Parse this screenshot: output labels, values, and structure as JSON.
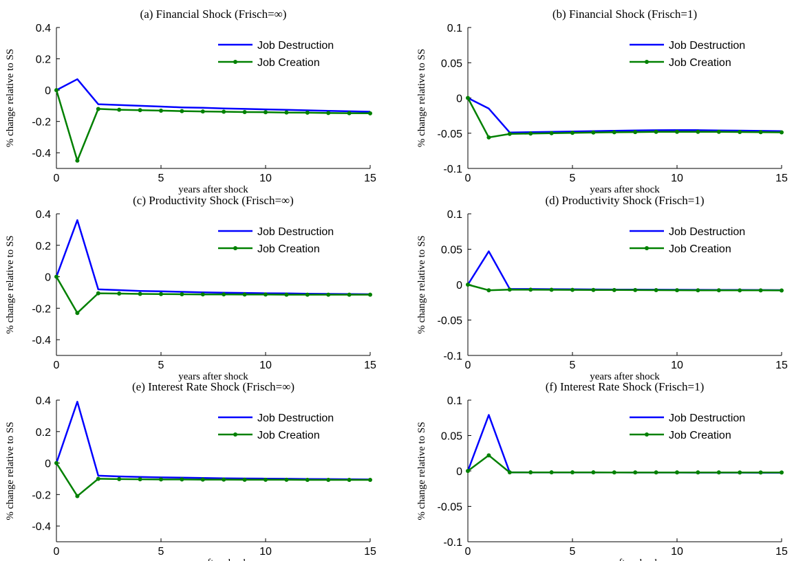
{
  "chart_data": [
    {
      "type": "line",
      "title": "(a) Financial Shock (Frisch=∞)",
      "xlabel": "years after shock",
      "ylabel": "% change relative to SS",
      "xlim": [
        0,
        15
      ],
      "ylim": [
        -0.5,
        0.4
      ],
      "xticks": [
        0,
        5,
        10,
        15
      ],
      "yticks": [
        0.4,
        0.2,
        0,
        -0.2,
        -0.4
      ],
      "yticklabels": [
        "0.4",
        "0.2",
        "0",
        "-0.2",
        "-0.4"
      ],
      "legend": "top-right",
      "x": [
        0,
        1,
        2,
        3,
        4,
        5,
        6,
        7,
        8,
        9,
        10,
        11,
        12,
        13,
        14,
        15
      ],
      "series": [
        {
          "name": "Job Destruction",
          "color": "#0000ff",
          "markers": false,
          "values": [
            0,
            0.07,
            -0.09,
            -0.095,
            -0.1,
            -0.105,
            -0.11,
            -0.113,
            -0.117,
            -0.12,
            -0.123,
            -0.126,
            -0.129,
            -0.132,
            -0.135,
            -0.138
          ]
        },
        {
          "name": "Job Creation",
          "color": "#008000",
          "markers": true,
          "values": [
            0,
            -0.45,
            -0.12,
            -0.125,
            -0.128,
            -0.131,
            -0.134,
            -0.136,
            -0.138,
            -0.14,
            -0.141,
            -0.143,
            -0.144,
            -0.146,
            -0.147,
            -0.148
          ]
        }
      ]
    },
    {
      "type": "line",
      "title": "(b) Financial Shock (Frisch=1)",
      "xlabel": "years after shock",
      "ylabel": "% change relative to SS",
      "xlim": [
        0,
        15
      ],
      "ylim": [
        -0.1,
        0.1
      ],
      "xticks": [
        0,
        5,
        10,
        15
      ],
      "yticks": [
        0.1,
        0.05,
        0,
        -0.05,
        -0.1
      ],
      "yticklabels": [
        "0.1",
        "0.05",
        "0",
        "-0.05",
        "-0.1"
      ],
      "legend": "top-right",
      "x": [
        0,
        1,
        2,
        3,
        4,
        5,
        6,
        7,
        8,
        9,
        10,
        11,
        12,
        13,
        14,
        15
      ],
      "series": [
        {
          "name": "Job Destruction",
          "color": "#0000ff",
          "markers": false,
          "values": [
            0,
            -0.015,
            -0.049,
            -0.0485,
            -0.048,
            -0.0475,
            -0.047,
            -0.0465,
            -0.046,
            -0.0458,
            -0.0457,
            -0.0457,
            -0.046,
            -0.0463,
            -0.0467,
            -0.047
          ]
        },
        {
          "name": "Job Creation",
          "color": "#008000",
          "markers": true,
          "values": [
            0,
            -0.056,
            -0.051,
            -0.0505,
            -0.05,
            -0.0495,
            -0.049,
            -0.0487,
            -0.0484,
            -0.0481,
            -0.048,
            -0.048,
            -0.0481,
            -0.0483,
            -0.0485,
            -0.0488
          ]
        }
      ]
    },
    {
      "type": "line",
      "title": "(c) Productivity Shock (Frisch=∞)",
      "xlabel": "years after shock",
      "ylabel": "% change relative to SS",
      "xlim": [
        0,
        15
      ],
      "ylim": [
        -0.5,
        0.4
      ],
      "xticks": [
        0,
        5,
        10,
        15
      ],
      "yticks": [
        0.4,
        0.2,
        0,
        -0.2,
        -0.4
      ],
      "yticklabels": [
        "0.4",
        "0.2",
        "0",
        "-0.2",
        "-0.4"
      ],
      "legend": "top-right",
      "x": [
        0,
        1,
        2,
        3,
        4,
        5,
        6,
        7,
        8,
        9,
        10,
        11,
        12,
        13,
        14,
        15
      ],
      "series": [
        {
          "name": "Job Destruction",
          "color": "#0000ff",
          "markers": false,
          "values": [
            0,
            0.36,
            -0.08,
            -0.085,
            -0.09,
            -0.093,
            -0.096,
            -0.099,
            -0.101,
            -0.103,
            -0.105,
            -0.106,
            -0.108,
            -0.109,
            -0.11,
            -0.111
          ]
        },
        {
          "name": "Job Creation",
          "color": "#008000",
          "markers": true,
          "values": [
            0,
            -0.23,
            -0.105,
            -0.107,
            -0.109,
            -0.11,
            -0.111,
            -0.112,
            -0.112,
            -0.113,
            -0.113,
            -0.114,
            -0.114,
            -0.114,
            -0.114,
            -0.114
          ]
        }
      ]
    },
    {
      "type": "line",
      "title": "(d) Productivity Shock (Frisch=1)",
      "xlabel": "years after shock",
      "ylabel": "% change relative to SS",
      "xlim": [
        0,
        15
      ],
      "ylim": [
        -0.1,
        0.1
      ],
      "xticks": [
        0,
        5,
        10,
        15
      ],
      "yticks": [
        0.1,
        0.05,
        0,
        -0.05,
        -0.1
      ],
      "yticklabels": [
        "0.1",
        "0.05",
        "0",
        "-0.05",
        "-0.1"
      ],
      "legend": "top-right",
      "x": [
        0,
        1,
        2,
        3,
        4,
        5,
        6,
        7,
        8,
        9,
        10,
        11,
        12,
        13,
        14,
        15
      ],
      "series": [
        {
          "name": "Job Destruction",
          "color": "#0000ff",
          "markers": false,
          "values": [
            0,
            0.047,
            -0.006,
            -0.0062,
            -0.0064,
            -0.0066,
            -0.0068,
            -0.007,
            -0.0071,
            -0.0072,
            -0.0073,
            -0.0074,
            -0.0075,
            -0.0076,
            -0.0077,
            -0.0078
          ]
        },
        {
          "name": "Job Creation",
          "color": "#008000",
          "markers": true,
          "values": [
            0,
            -0.008,
            -0.007,
            -0.0072,
            -0.0073,
            -0.0074,
            -0.0075,
            -0.0076,
            -0.0077,
            -0.0078,
            -0.0079,
            -0.008,
            -0.008,
            -0.0081,
            -0.0081,
            -0.0082
          ]
        }
      ]
    },
    {
      "type": "line",
      "title": "(e) Interest Rate Shock (Frisch=∞)",
      "xlabel": "years after shock",
      "ylabel": "% change relative to SS",
      "xlim": [
        0,
        15
      ],
      "ylim": [
        -0.5,
        0.4
      ],
      "xticks": [
        0,
        5,
        10,
        15
      ],
      "yticks": [
        0.4,
        0.2,
        0,
        -0.2,
        -0.4
      ],
      "yticklabels": [
        "0.4",
        "0.2",
        "0",
        "-0.2",
        "-0.4"
      ],
      "legend": "top-right",
      "x": [
        0,
        1,
        2,
        3,
        4,
        5,
        6,
        7,
        8,
        9,
        10,
        11,
        12,
        13,
        14,
        15
      ],
      "series": [
        {
          "name": "Job Destruction",
          "color": "#0000ff",
          "markers": false,
          "values": [
            0,
            0.39,
            -0.08,
            -0.085,
            -0.088,
            -0.091,
            -0.093,
            -0.095,
            -0.097,
            -0.098,
            -0.099,
            -0.1,
            -0.101,
            -0.102,
            -0.103,
            -0.104
          ]
        },
        {
          "name": "Job Creation",
          "color": "#008000",
          "markers": true,
          "values": [
            0,
            -0.21,
            -0.1,
            -0.102,
            -0.103,
            -0.104,
            -0.104,
            -0.105,
            -0.105,
            -0.106,
            -0.106,
            -0.106,
            -0.107,
            -0.107,
            -0.107,
            -0.107
          ]
        }
      ]
    },
    {
      "type": "line",
      "title": "(f) Interest Rate Shock (Frisch=1)",
      "xlabel": "years after shock",
      "ylabel": "% change relative to SS",
      "xlim": [
        0,
        15
      ],
      "ylim": [
        -0.1,
        0.1
      ],
      "xticks": [
        0,
        5,
        10,
        15
      ],
      "yticks": [
        0.1,
        0.05,
        0,
        -0.05,
        -0.1
      ],
      "yticklabels": [
        "0.1",
        "0.05",
        "0",
        "-0.05",
        "-0.1"
      ],
      "legend": "top-right",
      "x": [
        0,
        1,
        2,
        3,
        4,
        5,
        6,
        7,
        8,
        9,
        10,
        11,
        12,
        13,
        14,
        15
      ],
      "series": [
        {
          "name": "Job Destruction",
          "color": "#0000ff",
          "markers": false,
          "values": [
            0,
            0.079,
            -0.002,
            -0.0021,
            -0.0021,
            -0.0022,
            -0.0022,
            -0.0022,
            -0.0023,
            -0.0023,
            -0.0023,
            -0.0024,
            -0.0024,
            -0.0024,
            -0.0025,
            -0.0025
          ]
        },
        {
          "name": "Job Creation",
          "color": "#008000",
          "markers": true,
          "values": [
            0,
            0.022,
            -0.002,
            -0.002,
            -0.002,
            -0.002,
            -0.002,
            -0.0021,
            -0.0021,
            -0.0021,
            -0.0021,
            -0.0021,
            -0.0021,
            -0.0022,
            -0.0022,
            -0.0022
          ]
        }
      ]
    }
  ]
}
